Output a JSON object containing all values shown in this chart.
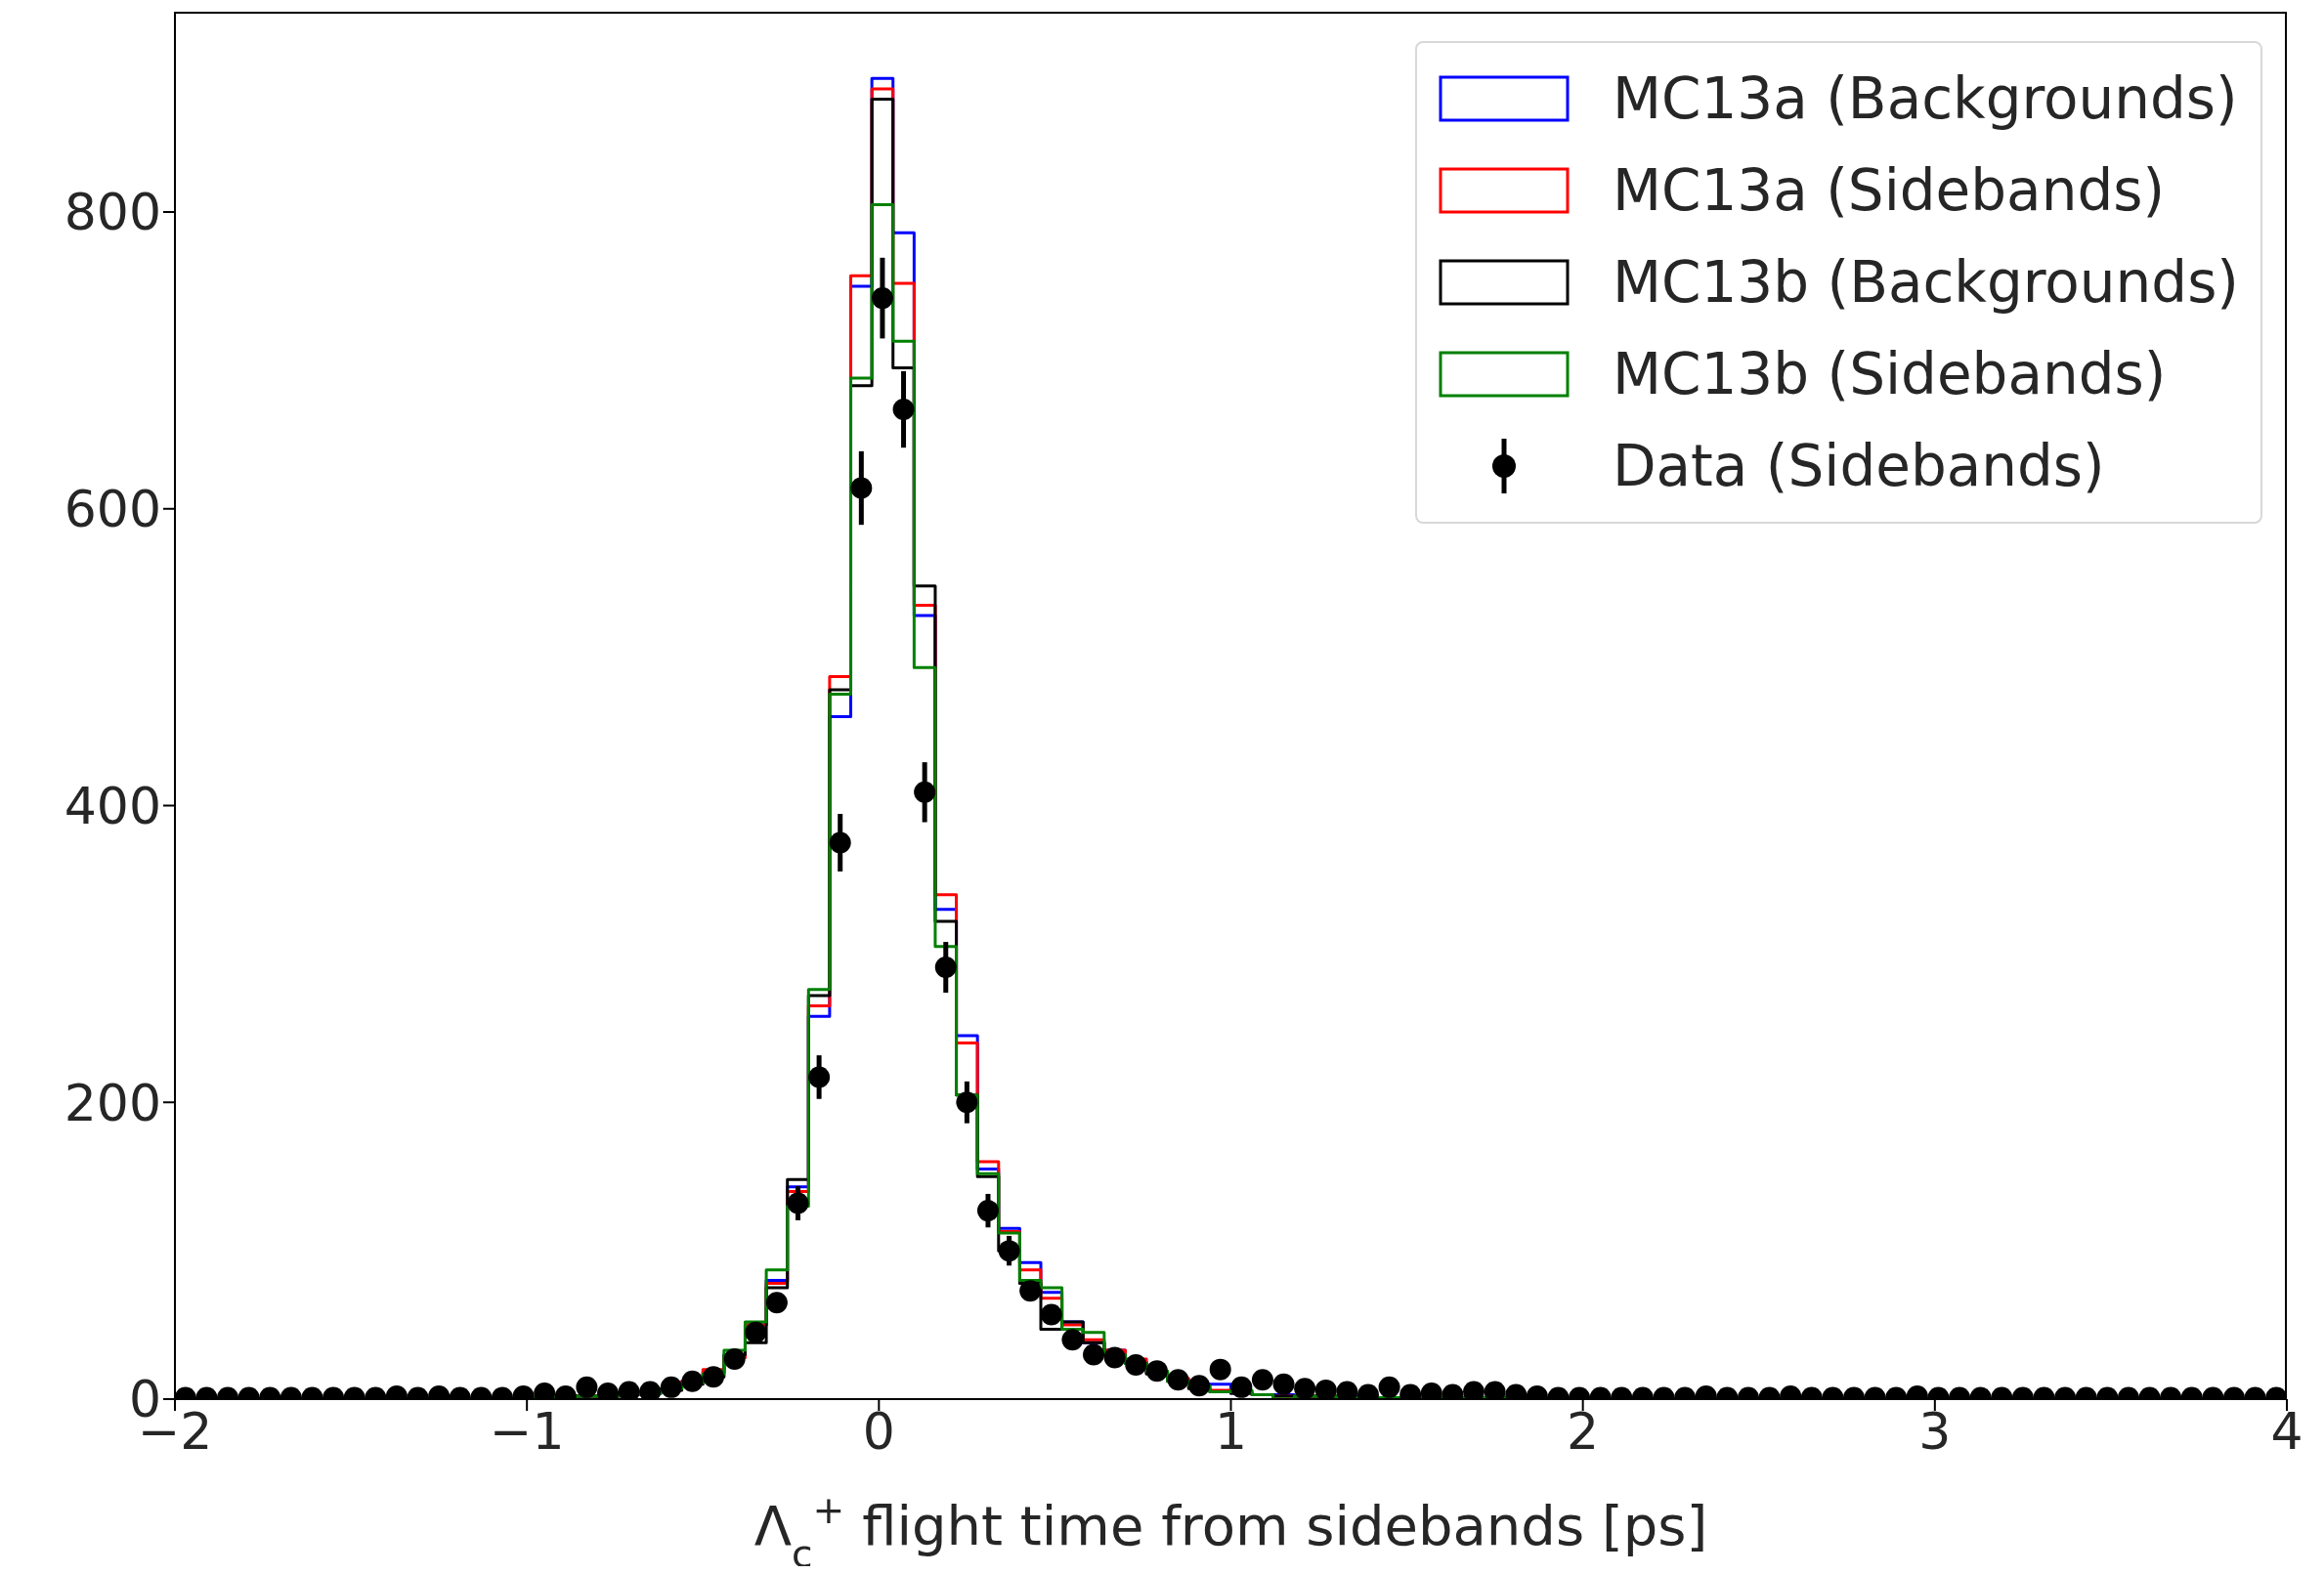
{
  "chart_data": {
    "type": "histogram",
    "xlabel": "Λ$_{c}$$^{+}$ flight time from sidebands [ps]",
    "bins": [
      -2,
      -1.94,
      -1.88,
      -1.82,
      -1.76,
      -1.7,
      -1.64,
      -1.58,
      -1.52,
      -1.46,
      -1.4,
      -1.34,
      -1.28,
      -1.22,
      -1.16,
      -1.1,
      -1.04,
      -0.98,
      -0.92,
      -0.86,
      -0.8,
      -0.74,
      -0.68,
      -0.62,
      -0.56,
      -0.5,
      -0.44,
      -0.38,
      -0.32,
      -0.26,
      -0.2,
      -0.14,
      -0.08,
      -0.02,
      0.04,
      0.1,
      0.16,
      0.22,
      0.28,
      0.34,
      0.4,
      0.46,
      0.52,
      0.58,
      0.64,
      0.7,
      0.76,
      0.82,
      0.88,
      0.94,
      1,
      1.06,
      1.12,
      1.18,
      1.24,
      1.3,
      1.36,
      1.42,
      1.48,
      1.54,
      1.6,
      1.66,
      1.72,
      1.78,
      1.84,
      1.9,
      1.96,
      2.02,
      2.08,
      2.14,
      2.2,
      2.26,
      2.32,
      2.38,
      2.44,
      2.5,
      2.56,
      2.62,
      2.68,
      2.74,
      2.8,
      2.86,
      2.92,
      2.98,
      3.04,
      3.1,
      3.16,
      3.22,
      3.28,
      3.34,
      3.4,
      3.46,
      3.52,
      3.58,
      3.64,
      3.7,
      3.76,
      3.82,
      3.88,
      3.94,
      4
    ],
    "series": [
      {
        "name": "MC13a (Backgrounds)",
        "color": "#0000ff",
        "values": [
          0,
          0,
          0,
          0,
          0,
          0,
          0,
          0,
          0,
          0,
          0,
          0,
          0,
          0,
          0,
          0,
          0,
          1,
          1,
          2,
          2,
          3,
          4,
          7,
          12,
          18,
          30,
          50,
          80,
          143,
          258,
          460,
          750,
          890,
          786,
          528,
          330,
          245,
          155,
          115,
          92,
          72,
          52,
          38,
          33,
          25,
          18,
          13,
          8,
          10,
          4,
          3,
          3,
          2,
          2,
          2,
          1,
          1,
          1,
          1,
          1,
          1,
          1,
          1,
          1,
          1,
          0,
          0,
          0,
          0,
          0,
          0,
          0,
          0,
          0,
          0,
          0,
          0,
          0,
          0,
          0,
          0,
          0,
          0,
          0,
          0,
          0,
          0,
          0,
          0,
          0,
          0,
          0,
          0,
          0,
          0,
          0,
          0,
          0,
          0
        ]
      },
      {
        "name": "MC13a (Sidebands)",
        "color": "#ff0000",
        "values": [
          0,
          0,
          0,
          0,
          0,
          0,
          0,
          0,
          0,
          0,
          0,
          0,
          0,
          0,
          0,
          0,
          0,
          1,
          1,
          2,
          2,
          3,
          5,
          7,
          12,
          20,
          28,
          50,
          78,
          140,
          265,
          487,
          757,
          883,
          752,
          535,
          340,
          240,
          160,
          113,
          87,
          68,
          50,
          40,
          33,
          27,
          18,
          14,
          8,
          6,
          5,
          3,
          2,
          2,
          2,
          1,
          1,
          1,
          1,
          1,
          1,
          1,
          1,
          1,
          1,
          1,
          0,
          0,
          0,
          0,
          0,
          0,
          0,
          0,
          0,
          0,
          0,
          0,
          0,
          0,
          0,
          0,
          0,
          0,
          0,
          0,
          0,
          0,
          0,
          0,
          0,
          0,
          0,
          0,
          0,
          0,
          0,
          0,
          0,
          0
        ]
      },
      {
        "name": "MC13b (Backgrounds)",
        "color": "#000000",
        "values": [
          0,
          0,
          0,
          0,
          0,
          0,
          0,
          0,
          0,
          0,
          0,
          0,
          0,
          0,
          0,
          0,
          0,
          1,
          1,
          2,
          2,
          3,
          4,
          6,
          10,
          15,
          30,
          38,
          75,
          148,
          272,
          478,
          683,
          876,
          695,
          548,
          322,
          205,
          150,
          100,
          78,
          47,
          52,
          38,
          30,
          24,
          17,
          12,
          7,
          5,
          4,
          3,
          2,
          2,
          2,
          1,
          1,
          1,
          1,
          1,
          1,
          1,
          1,
          1,
          1,
          1,
          0,
          0,
          0,
          0,
          0,
          0,
          0,
          0,
          0,
          0,
          0,
          0,
          0,
          0,
          0,
          0,
          0,
          0,
          0,
          0,
          0,
          0,
          0,
          0,
          0,
          0,
          0,
          0,
          0,
          0,
          0,
          0,
          0,
          0
        ]
      },
      {
        "name": "MC13b (Sidebands)",
        "color": "#008000",
        "values": [
          0,
          0,
          0,
          0,
          0,
          0,
          0,
          0,
          0,
          0,
          0,
          0,
          0,
          0,
          0,
          0,
          0,
          1,
          1,
          2,
          2,
          3,
          4,
          7,
          11,
          17,
          33,
          52,
          87,
          130,
          276,
          475,
          688,
          805,
          713,
          493,
          305,
          205,
          152,
          112,
          80,
          75,
          47,
          45,
          30,
          24,
          19,
          12,
          9,
          5,
          6,
          3,
          0,
          2,
          2,
          1,
          1,
          1,
          1,
          1,
          1,
          1,
          1,
          1,
          1,
          1,
          0,
          0,
          0,
          0,
          0,
          0,
          0,
          0,
          0,
          0,
          0,
          0,
          0,
          0,
          0,
          0,
          0,
          0,
          0,
          0,
          0,
          0,
          0,
          0,
          0,
          0,
          0,
          0,
          0,
          0,
          0,
          0,
          0,
          0
        ]
      },
      {
        "name": "Data (Sidebands)",
        "type": "scatter",
        "color": "#000000",
        "marker": "circle",
        "x": [
          -1.97,
          -1.91,
          -1.85,
          -1.79,
          -1.73,
          -1.67,
          -1.61,
          -1.55,
          -1.49,
          -1.43,
          -1.37,
          -1.31,
          -1.25,
          -1.19,
          -1.13,
          -1.07,
          -1.01,
          -0.95,
          -0.89,
          -0.83,
          -0.77,
          -0.71,
          -0.65,
          -0.59,
          -0.53,
          -0.47,
          -0.41,
          -0.35,
          -0.29,
          -0.23,
          -0.17,
          -0.11,
          -0.05,
          0.01,
          0.07,
          0.13,
          0.19,
          0.25,
          0.31,
          0.37,
          0.43,
          0.49,
          0.55,
          0.61,
          0.67,
          0.73,
          0.79,
          0.85,
          0.91,
          0.97,
          1.03,
          1.09,
          1.15,
          1.21,
          1.27,
          1.33,
          1.39,
          1.45,
          1.51,
          1.57,
          1.63,
          1.69,
          1.75,
          1.81,
          1.87,
          1.93,
          1.99,
          2.05,
          2.11,
          2.17,
          2.23,
          2.29,
          2.35,
          2.41,
          2.47,
          2.53,
          2.59,
          2.65,
          2.71,
          2.77,
          2.83,
          2.89,
          2.95,
          3.01,
          3.07,
          3.13,
          3.19,
          3.25,
          3.31,
          3.37,
          3.43,
          3.49,
          3.55,
          3.61,
          3.67,
          3.73,
          3.79,
          3.85,
          3.91,
          3.97
        ],
        "values": [
          1,
          1,
          1,
          1,
          1,
          1,
          1,
          1,
          1,
          1,
          2,
          1,
          2,
          1,
          1,
          1,
          2,
          4,
          2,
          8,
          4,
          5,
          5,
          8,
          12,
          15,
          27,
          45,
          65,
          132,
          217,
          375,
          614,
          742,
          667,
          409,
          291,
          200,
          127,
          100,
          73,
          57,
          40,
          30,
          28,
          23,
          19,
          13,
          9,
          20,
          8,
          13,
          10,
          7,
          6,
          5,
          3,
          8,
          3,
          4,
          3,
          5,
          5,
          3,
          2,
          1,
          1,
          1,
          1,
          1,
          1,
          1,
          2,
          1,
          1,
          1,
          2,
          1,
          1,
          1,
          1,
          1,
          2,
          1,
          1,
          1,
          1,
          1,
          1,
          1,
          1,
          1,
          1,
          1,
          1,
          1,
          1,
          1,
          1,
          1
        ],
        "errors": [
          null,
          null,
          null,
          null,
          null,
          null,
          null,
          null,
          null,
          null,
          null,
          null,
          null,
          null,
          null,
          null,
          null,
          null,
          null,
          null,
          null,
          null,
          null,
          null,
          null,
          null,
          null,
          null,
          null,
          11.5,
          14.7,
          19.4,
          24.8,
          27.2,
          25.8,
          20.2,
          17.1,
          14.1,
          11.3,
          10,
          null,
          null,
          null,
          null,
          null,
          null,
          null,
          null,
          null,
          null,
          null,
          null,
          null,
          null,
          null,
          null,
          null,
          null,
          null,
          null,
          null,
          null,
          null,
          null,
          null,
          null,
          null,
          null,
          null,
          null,
          null,
          null,
          null,
          null,
          null,
          null,
          null,
          null,
          null,
          null,
          null,
          null,
          null,
          null,
          null,
          null,
          null,
          null,
          null,
          null,
          null,
          null,
          null,
          null,
          null,
          null,
          null,
          null,
          null,
          null
        ]
      }
    ],
    "xlim": [
      -2,
      4
    ],
    "xticks": [
      {
        "value": -2,
        "label": "−2"
      },
      {
        "value": -1,
        "label": "−1"
      },
      0,
      1,
      2,
      3,
      4
    ],
    "ylim": [
      0,
      935
    ],
    "yticks": [
      0,
      200,
      400,
      600,
      800
    ],
    "grid": false,
    "legend": "top right"
  }
}
